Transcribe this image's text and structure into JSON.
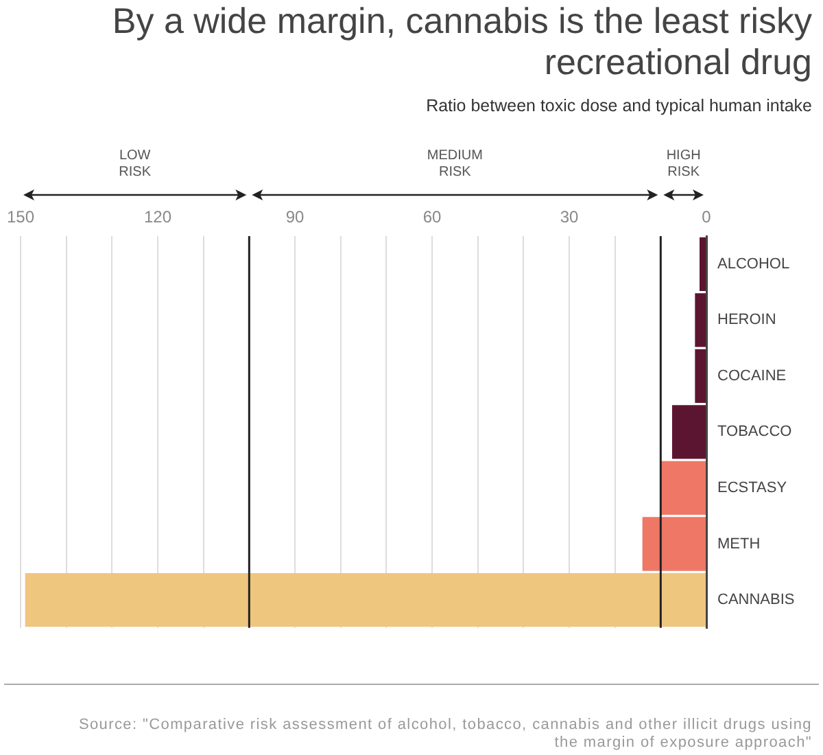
{
  "chart_data": {
    "type": "bar",
    "orientation": "horizontal",
    "title": "By a wide margin, cannabis is the least risky recreational drug",
    "subtitle": "Ratio between toxic dose and typical human intake",
    "categories": [
      "ALCOHOL",
      "HEROIN",
      "COCAINE",
      "TOBACCO",
      "ECSTASY",
      "METH",
      "CANNABIS"
    ],
    "values": [
      1.5,
      2.5,
      2.5,
      7.5,
      10,
      14,
      149
    ],
    "colors": [
      "#5c1530",
      "#5c1530",
      "#5c1530",
      "#5c1530",
      "#ef7766",
      "#ef7766",
      "#efc67e"
    ],
    "xlim": [
      150,
      0
    ],
    "xticks": [
      0,
      {
        "value": 20,
        "label": null
      },
      30,
      {
        "value": 40,
        "label": null
      },
      {
        "value": 50,
        "label": null
      },
      60,
      {
        "value": 70,
        "label": null
      },
      {
        "value": 80,
        "label": null
      },
      90,
      {
        "value": 110,
        "label": null
      },
      120,
      {
        "value": 130,
        "label": null
      },
      {
        "value": 140,
        "label": null
      },
      150
    ],
    "grid": "x",
    "legend": false,
    "ref_lines": [
      {
        "axis": "x",
        "value": 10,
        "color": "#222222"
      },
      {
        "axis": "x",
        "value": 100,
        "color": "#222222"
      }
    ],
    "annotations": [
      "LOW RISK",
      "MEDIUM RISK",
      "HIGH RISK",
      "Source: \"Comparative risk assessment of alcohol, tobacco, cannabis and other illicit drugs using the margin of exposure approach\""
    ]
  }
}
